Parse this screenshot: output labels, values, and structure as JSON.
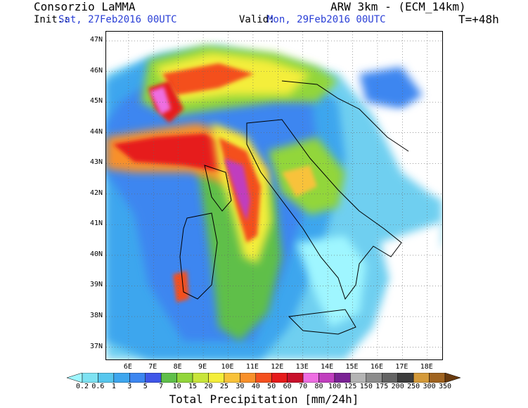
{
  "header": {
    "org": "Consorzio LaMMA",
    "model": "ARW 3km - (ECM_14km)",
    "init_label": "Init.:",
    "init_value": "Sat, 27Feb2016 00UTC",
    "valid_label": "Valid:",
    "valid_value": "Mon, 29Feb2016 00UTC",
    "lead": "T=+48h"
  },
  "map": {
    "lat_labels": [
      "47N",
      "46N",
      "45N",
      "44N",
      "43N",
      "42N",
      "41N",
      "40N",
      "39N",
      "38N",
      "37N"
    ],
    "lat_values": [
      47,
      46,
      45,
      44,
      43,
      42,
      41,
      40,
      39,
      38,
      37
    ],
    "lon_labels": [
      "6E",
      "7E",
      "8E",
      "9E",
      "10E",
      "11E",
      "12E",
      "13E",
      "14E",
      "15E",
      "16E",
      "17E",
      "18E"
    ],
    "lon_values": [
      6,
      7,
      8,
      9,
      10,
      11,
      12,
      13,
      14,
      15,
      16,
      17,
      18
    ],
    "lat_range": [
      36.6,
      47.3
    ],
    "lon_range": [
      5.1,
      18.6
    ]
  },
  "legend": {
    "title": "Total Precipitation [mm/24h]",
    "levels": [
      "0.2",
      "0.6",
      "1",
      "3",
      "5",
      "7",
      "10",
      "15",
      "20",
      "25",
      "30",
      "40",
      "50",
      "60",
      "70",
      "80",
      "100",
      "125",
      "150",
      "175",
      "200",
      "250",
      "300",
      "350"
    ],
    "colors": [
      "#9ff6ff",
      "#7ee2f2",
      "#57c7ee",
      "#3ea6ee",
      "#3c86f0",
      "#3f56e8",
      "#5fbf4a",
      "#92d63a",
      "#c8e53a",
      "#f4ee3a",
      "#f8c23a",
      "#f8902a",
      "#f4501e",
      "#e61a1a",
      "#c80f2a",
      "#ee6ee2",
      "#c03ebe",
      "#7a2294",
      "#b4b4b4",
      "#8c8c8c",
      "#646464",
      "#3c3c3c",
      "#d49a3a",
      "#a06420",
      "#683a0e"
    ]
  }
}
